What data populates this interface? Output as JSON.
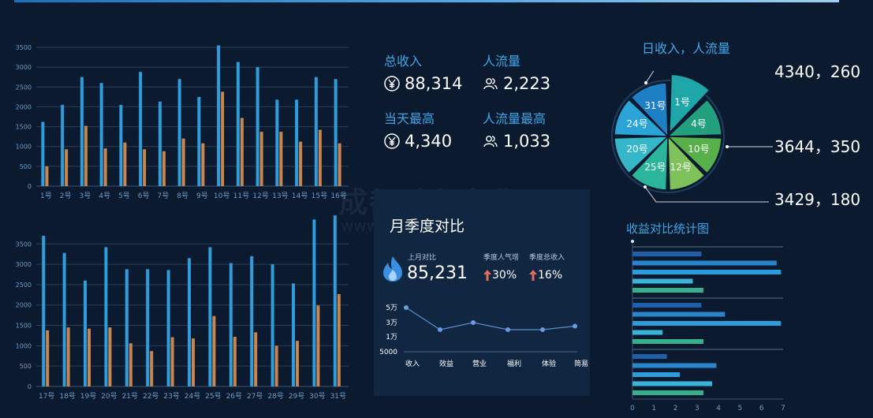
{
  "stats": {
    "total_income_label": "总收入",
    "total_income_value": "88,314",
    "traffic_label": "人流量",
    "traffic_value": "2,223",
    "day_high_label": "当天最高",
    "day_high_value": "4,340",
    "traffic_high_label": "人流量最高",
    "traffic_high_value": "1,033"
  },
  "pie": {
    "title": "日收入，人流量",
    "callouts": [
      "4340，260",
      "3644，350",
      "3429，180"
    ]
  },
  "monthly_box": {
    "title": "月季度对比",
    "last_month_label": "上月对比",
    "last_month_value": "85,231",
    "season_pop_label": "季度人气增",
    "season_pop_value": "30%",
    "season_income_label": "季度总收入",
    "season_income_value": "16%"
  },
  "hbar": {
    "title": "收益对比统计图"
  },
  "watermark": {
    "line1": "成都融和实业",
    "line2": "www.           no.com"
  },
  "colors": {
    "blue": "#2f9ddc",
    "orange": "#c98550",
    "bg": "#0b1a2e"
  },
  "chart_data": [
    {
      "type": "bar",
      "categories": [
        "1号",
        "2号",
        "3号",
        "4号",
        "5号",
        "6号",
        "7号",
        "8号",
        "9号",
        "10号",
        "11号",
        "12号",
        "13号",
        "14号",
        "15号",
        "16号"
      ],
      "series": [
        {
          "values": [
            1620,
            2050,
            2750,
            2600,
            2050,
            2880,
            2130,
            2700,
            2250,
            3550,
            3130,
            3000,
            2180,
            2180,
            2750,
            2700
          ]
        },
        {
          "values": [
            500,
            930,
            1520,
            950,
            1100,
            930,
            880,
            1200,
            1080,
            2380,
            1720,
            1370,
            1370,
            1120,
            1420,
            1080
          ]
        }
      ],
      "ylim": [
        0,
        3500
      ],
      "yticks": [
        0,
        500,
        1000,
        1500,
        2000,
        2500,
        3000,
        3500
      ]
    },
    {
      "type": "bar",
      "categories": [
        "17号",
        "18号",
        "19号",
        "20号",
        "21号",
        "22号",
        "23号",
        "24号",
        "25号",
        "26号",
        "27号",
        "28号",
        "29号",
        "30号",
        "31号"
      ],
      "series": [
        {
          "values": [
            3700,
            3280,
            2600,
            3420,
            2880,
            2880,
            2860,
            3150,
            3420,
            3030,
            3200,
            3000,
            2530,
            4100,
            4200
          ]
        },
        {
          "values": [
            1380,
            1450,
            1420,
            1450,
            1060,
            870,
            1210,
            1180,
            1730,
            1220,
            1330,
            1000,
            1120,
            1990,
            2270
          ]
        }
      ],
      "ylim": [
        0,
        4300
      ],
      "yticks": [
        0,
        500,
        1000,
        1500,
        2000,
        2500,
        3000,
        3500
      ]
    },
    {
      "type": "pie",
      "labels": [
        "1号",
        "4号",
        "10号",
        "12号",
        "25号",
        "20号",
        "24号",
        "31号"
      ],
      "values": [
        1,
        1,
        1,
        1,
        1,
        1,
        1,
        1
      ],
      "colors": [
        "#1fa6a8",
        "#23a07e",
        "#58b04a",
        "#7fc15b",
        "#2bb59a",
        "#35b7c9",
        "#2aa3d6",
        "#1f7fc4"
      ]
    },
    {
      "type": "line",
      "categories": [
        "收入",
        "效益",
        "营业",
        "福利",
        "体验",
        "简易"
      ],
      "values": [
        50000,
        20000,
        30000,
        20000,
        20000,
        25000
      ],
      "yticks": [
        {
          "v": 5000,
          "t": "5000"
        },
        {
          "v": 10000,
          "t": "1万"
        },
        {
          "v": 30000,
          "t": "3万"
        },
        {
          "v": 50000,
          "t": "5万"
        }
      ]
    },
    {
      "type": "bar",
      "orientation": "horizontal",
      "groups": [
        [
          3.2,
          6.7,
          6.9,
          2.8,
          3.3
        ],
        [
          3.2,
          4.3,
          6.9,
          1.4,
          3.3
        ],
        [
          1.6,
          3.9,
          2.2,
          3.7,
          3.3
        ]
      ],
      "colors": [
        "#1f5fa8",
        "#2a86cc",
        "#2f9ddc",
        "#3ab4d8",
        "#35b08a"
      ],
      "xlim": [
        0,
        7
      ],
      "xticks": [
        0,
        1,
        2,
        3,
        4,
        5,
        6,
        7
      ]
    }
  ]
}
